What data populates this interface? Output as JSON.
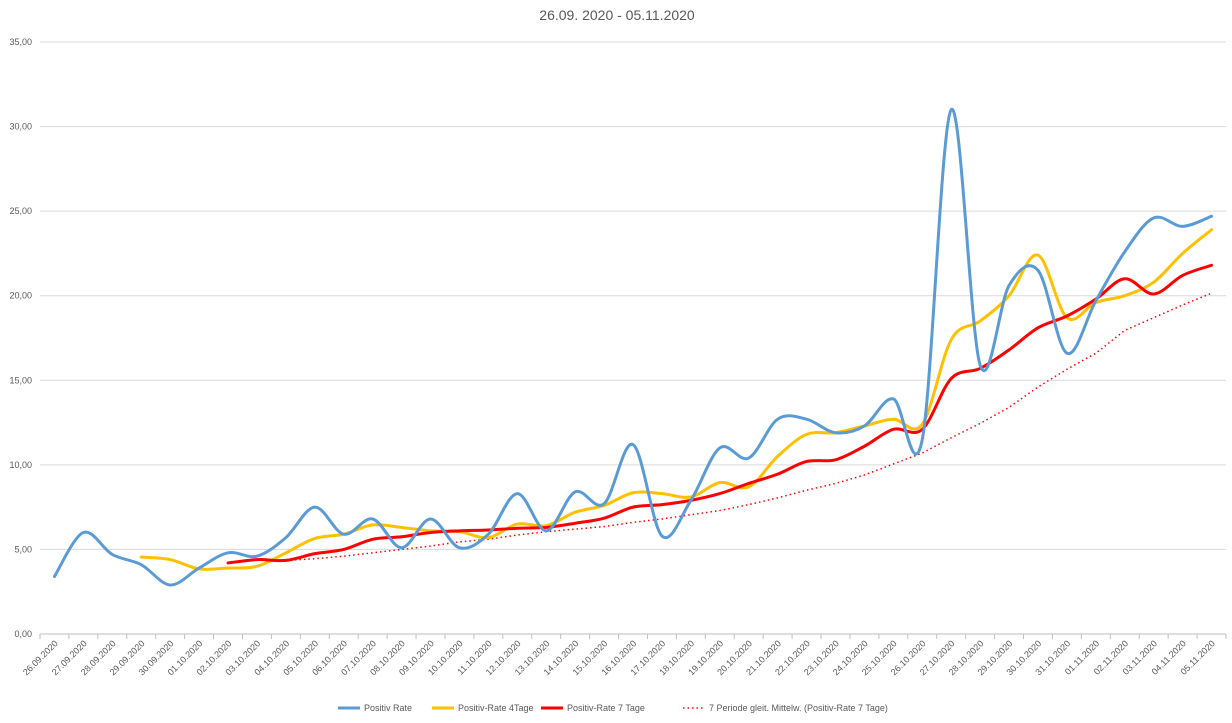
{
  "chart_data": {
    "type": "line",
    "title": "26.09. 2020 - 05.11.2020",
    "xlabel": "",
    "ylabel": "",
    "ylim": [
      0,
      35
    ],
    "yticks": [
      "0,00",
      "5,00",
      "10,00",
      "15,00",
      "20,00",
      "25,00",
      "30,00",
      "35,00"
    ],
    "grid": true,
    "legend_position": "bottom",
    "categories": [
      "26.09.2020",
      "27.09.2020",
      "28.09.2020",
      "29.09.2020",
      "30.09.2020",
      "01.10.2020",
      "02.10.2020",
      "03.10.2020",
      "04.10.2020",
      "05.10.2020",
      "06.10.2020",
      "07.10.2020",
      "08.10.2020",
      "09.10.2020",
      "10.10.2020",
      "11.10.2020",
      "12.10.2020",
      "13.10.2020",
      "14.10.2020",
      "15.10.2020",
      "16.10.2020",
      "17.10.2020",
      "18.10.2020",
      "19.10.2020",
      "20.10.2020",
      "21.10.2020",
      "22.10.2020",
      "23.10.2020",
      "24.10.2020",
      "25.10.2020",
      "26.10.2020",
      "27.10.2020",
      "28.10.2020",
      "29.10.2020",
      "30.10.2020",
      "31.10.2020",
      "01.11.2020",
      "02.11.2020",
      "03.11.2020",
      "04.11.2020",
      "05.11.2020"
    ],
    "series": [
      {
        "name": "Positiv Rate",
        "color": "#5b9bd5",
        "style": "solid",
        "width": 3,
        "values": [
          3.4,
          6.0,
          4.7,
          4.1,
          2.9,
          3.9,
          4.8,
          4.6,
          5.7,
          7.5,
          5.9,
          6.8,
          5.1,
          6.8,
          5.1,
          5.9,
          8.3,
          6.1,
          8.4,
          7.7,
          11.2,
          5.8,
          7.9,
          11.0,
          10.4,
          12.7,
          12.7,
          11.9,
          12.3,
          13.9,
          11.5,
          31.0,
          15.9,
          20.6,
          21.5,
          16.6,
          19.7,
          22.6,
          24.6,
          24.1,
          24.7
        ]
      },
      {
        "name": "Positiv-Rate 4Tage",
        "color": "#ffc000",
        "style": "solid",
        "width": 3,
        "values": [
          null,
          null,
          null,
          4.55,
          4.4,
          3.85,
          3.9,
          4.0,
          4.8,
          5.65,
          5.9,
          6.45,
          6.3,
          6.1,
          6.05,
          5.7,
          6.5,
          6.4,
          7.2,
          7.6,
          8.35,
          8.3,
          8.1,
          8.95,
          8.7,
          10.5,
          11.8,
          11.9,
          12.3,
          12.7,
          12.4,
          17.4,
          18.5,
          20.0,
          22.4,
          18.7,
          19.6,
          20.0,
          20.8,
          22.5,
          23.9
        ]
      },
      {
        "name": "Positiv-Rate 7 Tage",
        "color": "#ff0000",
        "style": "solid",
        "width": 3,
        "values": [
          null,
          null,
          null,
          null,
          null,
          null,
          4.2,
          4.4,
          4.35,
          4.75,
          5.0,
          5.6,
          5.75,
          6.0,
          6.1,
          6.15,
          6.25,
          6.3,
          6.55,
          6.85,
          7.5,
          7.65,
          7.9,
          8.3,
          8.9,
          9.45,
          10.2,
          10.3,
          11.1,
          12.1,
          12.1,
          15.1,
          15.7,
          16.8,
          18.1,
          18.8,
          19.8,
          21.0,
          20.1,
          21.2,
          21.8
        ]
      },
      {
        "name": "7 Periode gleit. Mittelw. (Positiv-Rate 7 Tage)",
        "color": "#ff0000",
        "style": "dotted",
        "width": 1.5,
        "values": [
          null,
          null,
          null,
          null,
          null,
          null,
          null,
          null,
          4.35,
          4.45,
          4.6,
          4.8,
          5.0,
          5.2,
          5.45,
          5.6,
          5.85,
          6.05,
          6.2,
          6.35,
          6.6,
          6.8,
          7.05,
          7.3,
          7.65,
          8.05,
          8.5,
          8.9,
          9.4,
          10.05,
          10.7,
          11.6,
          12.45,
          13.4,
          14.6,
          15.65,
          16.6,
          17.95,
          18.7,
          19.45,
          20.15
        ]
      }
    ]
  }
}
